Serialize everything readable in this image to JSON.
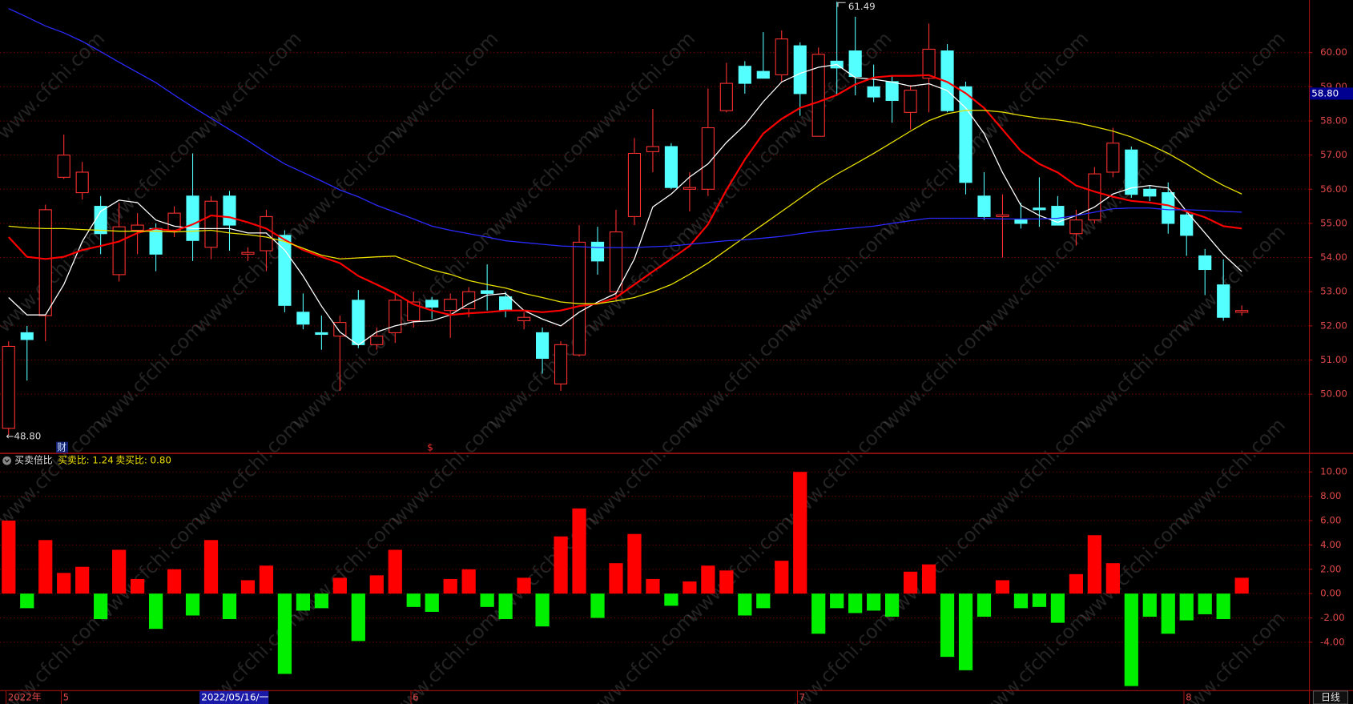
{
  "chart_data": [
    {
      "type": "candlestick",
      "categories": [
        "2022年",
        null,
        null,
        "5",
        null,
        null,
        null,
        null,
        null,
        null,
        null,
        null,
        null,
        null,
        null,
        null,
        null,
        null,
        null,
        null,
        null,
        null,
        "6",
        null,
        null,
        null,
        null,
        null,
        null,
        null,
        null,
        null,
        null,
        null,
        null,
        null,
        null,
        null,
        null,
        null,
        null,
        null,
        null,
        "7",
        null,
        null,
        null,
        null,
        null,
        null,
        null,
        null,
        null,
        null,
        null,
        null,
        null,
        null,
        null,
        null,
        null,
        null,
        null,
        null,
        "8",
        null,
        null,
        null
      ],
      "open": [
        49.0,
        51.8,
        52.3,
        56.35,
        55.9,
        55.5,
        53.5,
        54.8,
        54.85,
        54.8,
        55.8,
        54.3,
        55.8,
        54.1,
        54.2,
        54.65,
        52.4,
        51.8,
        51.7,
        52.75,
        51.45,
        51.8,
        52.15,
        52.75,
        52.45,
        52.5,
        53.03,
        52.85,
        52.15,
        51.8,
        50.3,
        51.15,
        54.45,
        53.0,
        55.2,
        57.1,
        57.25,
        56.0,
        56.0,
        58.3,
        59.6,
        59.45,
        59.35,
        60.2,
        57.55,
        59.75,
        60.05,
        59.0,
        59.15,
        58.25,
        59.25,
        60.05,
        59.0,
        55.8,
        55.2,
        55.1,
        55.45,
        55.5,
        54.7,
        55.1,
        56.5,
        57.15,
        56.0,
        55.9,
        55.25,
        54.05,
        53.2,
        52.4
      ],
      "high": [
        51.55,
        52.0,
        55.55,
        57.6,
        56.8,
        55.8,
        55.6,
        55.3,
        55.0,
        55.5,
        57.05,
        55.8,
        55.95,
        54.3,
        55.4,
        54.8,
        52.95,
        52.3,
        52.3,
        53.05,
        51.95,
        52.95,
        53.0,
        52.85,
        52.95,
        53.13,
        53.8,
        53.0,
        52.4,
        51.95,
        51.55,
        54.95,
        54.9,
        55.4,
        57.5,
        58.35,
        57.35,
        56.5,
        58.95,
        59.7,
        59.75,
        60.6,
        60.65,
        60.3,
        60.15,
        61.49,
        61.05,
        59.65,
        59.3,
        59.05,
        60.85,
        60.25,
        59.15,
        56.5,
        55.85,
        55.6,
        56.35,
        55.8,
        55.4,
        56.65,
        57.8,
        57.25,
        56.1,
        56.2,
        55.35,
        54.25,
        53.95,
        52.6
      ],
      "low": [
        48.8,
        50.4,
        51.55,
        56.3,
        55.7,
        54.1,
        53.3,
        54.1,
        53.6,
        54.6,
        53.9,
        53.95,
        54.2,
        53.9,
        53.6,
        52.4,
        51.9,
        51.3,
        50.1,
        51.35,
        51.3,
        51.5,
        51.95,
        52.2,
        51.65,
        52.25,
        52.45,
        52.25,
        51.9,
        50.6,
        50.1,
        51.1,
        53.5,
        52.75,
        54.95,
        56.5,
        56.0,
        55.35,
        55.8,
        58.25,
        58.8,
        59.25,
        59.15,
        58.15,
        57.55,
        58.75,
        58.75,
        58.55,
        57.95,
        57.75,
        58.25,
        58.25,
        55.85,
        55.1,
        54.0,
        54.85,
        54.9,
        54.95,
        54.35,
        55.0,
        56.35,
        55.75,
        55.65,
        54.7,
        54.05,
        52.9,
        52.15,
        52.3
      ],
      "close": [
        51.4,
        51.6,
        55.4,
        57.0,
        56.5,
        54.7,
        54.9,
        54.95,
        54.1,
        55.3,
        54.5,
        55.65,
        54.95,
        54.15,
        55.2,
        52.6,
        52.05,
        51.75,
        52.1,
        51.45,
        51.7,
        52.75,
        52.7,
        52.55,
        52.78,
        53.0,
        52.95,
        52.45,
        52.25,
        51.05,
        51.45,
        54.45,
        53.9,
        54.75,
        57.05,
        57.25,
        56.05,
        56.05,
        57.8,
        59.1,
        59.1,
        59.25,
        60.4,
        58.8,
        59.95,
        59.55,
        59.3,
        58.7,
        58.6,
        58.9,
        60.1,
        58.3,
        56.2,
        55.2,
        55.25,
        55.0,
        55.4,
        54.95,
        55.1,
        56.45,
        57.35,
        55.85,
        55.8,
        55.0,
        54.65,
        53.65,
        52.25,
        52.45
      ],
      "up_color": "#ff3030",
      "down_color": "#54ffff",
      "lines": [
        {
          "color": "#ffffff",
          "values": [
            52.83,
            52.32,
            52.32,
            53.21,
            54.47,
            55.35,
            55.68,
            55.61,
            55.1,
            54.92,
            54.85,
            54.85,
            54.85,
            54.72,
            54.72,
            54.22,
            53.46,
            52.58,
            51.82,
            51.44,
            51.82,
            52.0,
            52.12,
            52.15,
            52.32,
            52.65,
            52.9,
            52.95,
            52.45,
            52.2,
            52.0,
            52.4,
            52.7,
            52.95,
            53.96,
            55.48,
            55.86,
            56.36,
            56.74,
            57.37,
            57.88,
            58.56,
            59.14,
            59.39,
            59.57,
            59.65,
            59.27,
            59.22,
            59.14,
            59.02,
            59.09,
            58.89,
            58.38,
            57.63,
            56.49,
            55.53,
            55.23,
            55.03,
            55.23,
            55.48,
            55.86,
            56.04,
            56.11,
            56.04,
            55.35,
            54.72,
            54.09,
            53.59
          ]
        },
        {
          "color": "#ff0000",
          "values": [
            54.6,
            54.02,
            53.96,
            54.02,
            54.22,
            54.34,
            54.47,
            54.72,
            54.85,
            54.77,
            54.97,
            55.23,
            55.18,
            55.03,
            54.85,
            54.52,
            54.22,
            54.02,
            53.84,
            53.46,
            53.21,
            52.95,
            52.63,
            52.45,
            52.32,
            52.37,
            52.4,
            52.45,
            52.45,
            52.4,
            52.45,
            52.58,
            52.65,
            52.83,
            53.21,
            53.59,
            53.96,
            54.34,
            54.97,
            55.98,
            56.87,
            57.63,
            58.06,
            58.38,
            58.56,
            58.76,
            59.07,
            59.27,
            59.32,
            59.32,
            59.34,
            59.14,
            58.81,
            58.38,
            57.75,
            57.12,
            56.74,
            56.49,
            56.11,
            55.93,
            55.78,
            55.66,
            55.61,
            55.53,
            55.35,
            55.18,
            54.92,
            54.85
          ]
        },
        {
          "color": "#e8e000",
          "values": [
            54.92,
            54.87,
            54.85,
            54.85,
            54.82,
            54.8,
            54.77,
            54.77,
            54.77,
            54.75,
            54.77,
            54.8,
            54.72,
            54.67,
            54.6,
            54.47,
            54.27,
            54.07,
            53.96,
            53.99,
            54.02,
            54.04,
            53.84,
            53.64,
            53.51,
            53.33,
            53.21,
            53.11,
            52.95,
            52.83,
            52.7,
            52.65,
            52.65,
            52.73,
            52.83,
            53.0,
            53.21,
            53.51,
            53.84,
            54.22,
            54.6,
            54.97,
            55.35,
            55.73,
            56.11,
            56.44,
            56.74,
            57.05,
            57.37,
            57.7,
            58.01,
            58.21,
            58.31,
            58.31,
            58.26,
            58.16,
            58.08,
            58.03,
            57.95,
            57.83,
            57.7,
            57.53,
            57.3,
            57.05,
            56.74,
            56.41,
            56.11,
            55.86
          ]
        },
        {
          "color": "#2a2aff",
          "values": [
            61.29,
            61.04,
            60.78,
            60.58,
            60.33,
            60.03,
            59.72,
            59.42,
            59.12,
            58.76,
            58.41,
            58.08,
            57.75,
            57.42,
            57.07,
            56.74,
            56.49,
            56.24,
            55.98,
            55.78,
            55.53,
            55.33,
            55.13,
            54.92,
            54.8,
            54.7,
            54.6,
            54.49,
            54.44,
            54.39,
            54.34,
            54.32,
            54.29,
            54.29,
            54.29,
            54.32,
            54.34,
            54.39,
            54.44,
            54.49,
            54.52,
            54.57,
            54.62,
            54.7,
            54.77,
            54.82,
            54.87,
            54.92,
            55.0,
            55.08,
            55.15,
            55.15,
            55.15,
            55.15,
            55.13,
            55.13,
            55.13,
            55.15,
            55.23,
            55.33,
            55.43,
            55.45,
            55.45,
            55.4,
            55.4,
            55.38,
            55.35,
            55.33
          ]
        }
      ],
      "ylim": [
        48.28,
        61.54
      ],
      "yticks": [
        {
          "value": 50,
          "label": "50.00"
        },
        {
          "value": 51,
          "label": "51.00"
        },
        {
          "value": 52,
          "label": "52.00"
        },
        {
          "value": 53,
          "label": "53.00"
        },
        {
          "value": 54,
          "label": "54.00"
        },
        {
          "value": 55,
          "label": "55.00"
        },
        {
          "value": 56,
          "label": "56.00"
        },
        {
          "value": 57,
          "label": "57.00"
        },
        {
          "value": 58,
          "label": "58.00"
        },
        {
          "value": 59,
          "label": "59.00"
        },
        {
          "value": 60,
          "label": "60.00"
        }
      ],
      "grid": true,
      "current_price": {
        "value": 58.8,
        "label": "58.80"
      },
      "high_label": "61.49",
      "low_label": "←48.80",
      "markers": [
        "财",
        "$"
      ],
      "cursor_label": "2022/05/16/一",
      "period": "日线",
      "watermark": "www.cfchi.com"
    },
    {
      "type": "bar",
      "title": "买卖倍比",
      "legend": [
        "买卖比: 1.24",
        "卖买比: 0.80"
      ],
      "values": [
        6.0,
        -1.2,
        4.4,
        1.7,
        2.2,
        -2.1,
        3.6,
        1.2,
        -2.9,
        2.0,
        -1.8,
        4.4,
        -2.1,
        1.1,
        2.3,
        -6.6,
        -1.4,
        -1.2,
        1.3,
        -3.9,
        1.5,
        3.6,
        -1.1,
        -1.5,
        1.2,
        2.0,
        -1.1,
        -2.1,
        1.3,
        -2.7,
        4.7,
        7.0,
        -2.0,
        2.5,
        4.9,
        1.2,
        -1.0,
        1.0,
        2.3,
        1.9,
        -1.8,
        -1.2,
        2.7,
        10.0,
        -3.3,
        -1.2,
        -1.6,
        -1.4,
        -1.9,
        1.8,
        2.4,
        -5.2,
        -6.3,
        -1.9,
        1.1,
        -1.2,
        -1.1,
        -2.4,
        1.6,
        4.8,
        2.5,
        -7.6,
        -1.9,
        -3.3,
        -2.2,
        -1.7,
        -2.1,
        1.3
      ],
      "pos_color": "#ff0000",
      "neg_color": "#00f000",
      "ylim": [
        -7.94,
        11.42
      ],
      "yticks": [
        {
          "value": -4,
          "label": "-4.00"
        },
        {
          "value": -2,
          "label": "-2.00"
        },
        {
          "value": 0,
          "label": "0.00"
        },
        {
          "value": 2,
          "label": "2.00"
        },
        {
          "value": 4,
          "label": "4.00"
        },
        {
          "value": 6,
          "label": "6.00"
        },
        {
          "value": 8,
          "label": "8.00"
        },
        {
          "value": 10,
          "label": "10.00"
        }
      ],
      "grid": true
    }
  ]
}
